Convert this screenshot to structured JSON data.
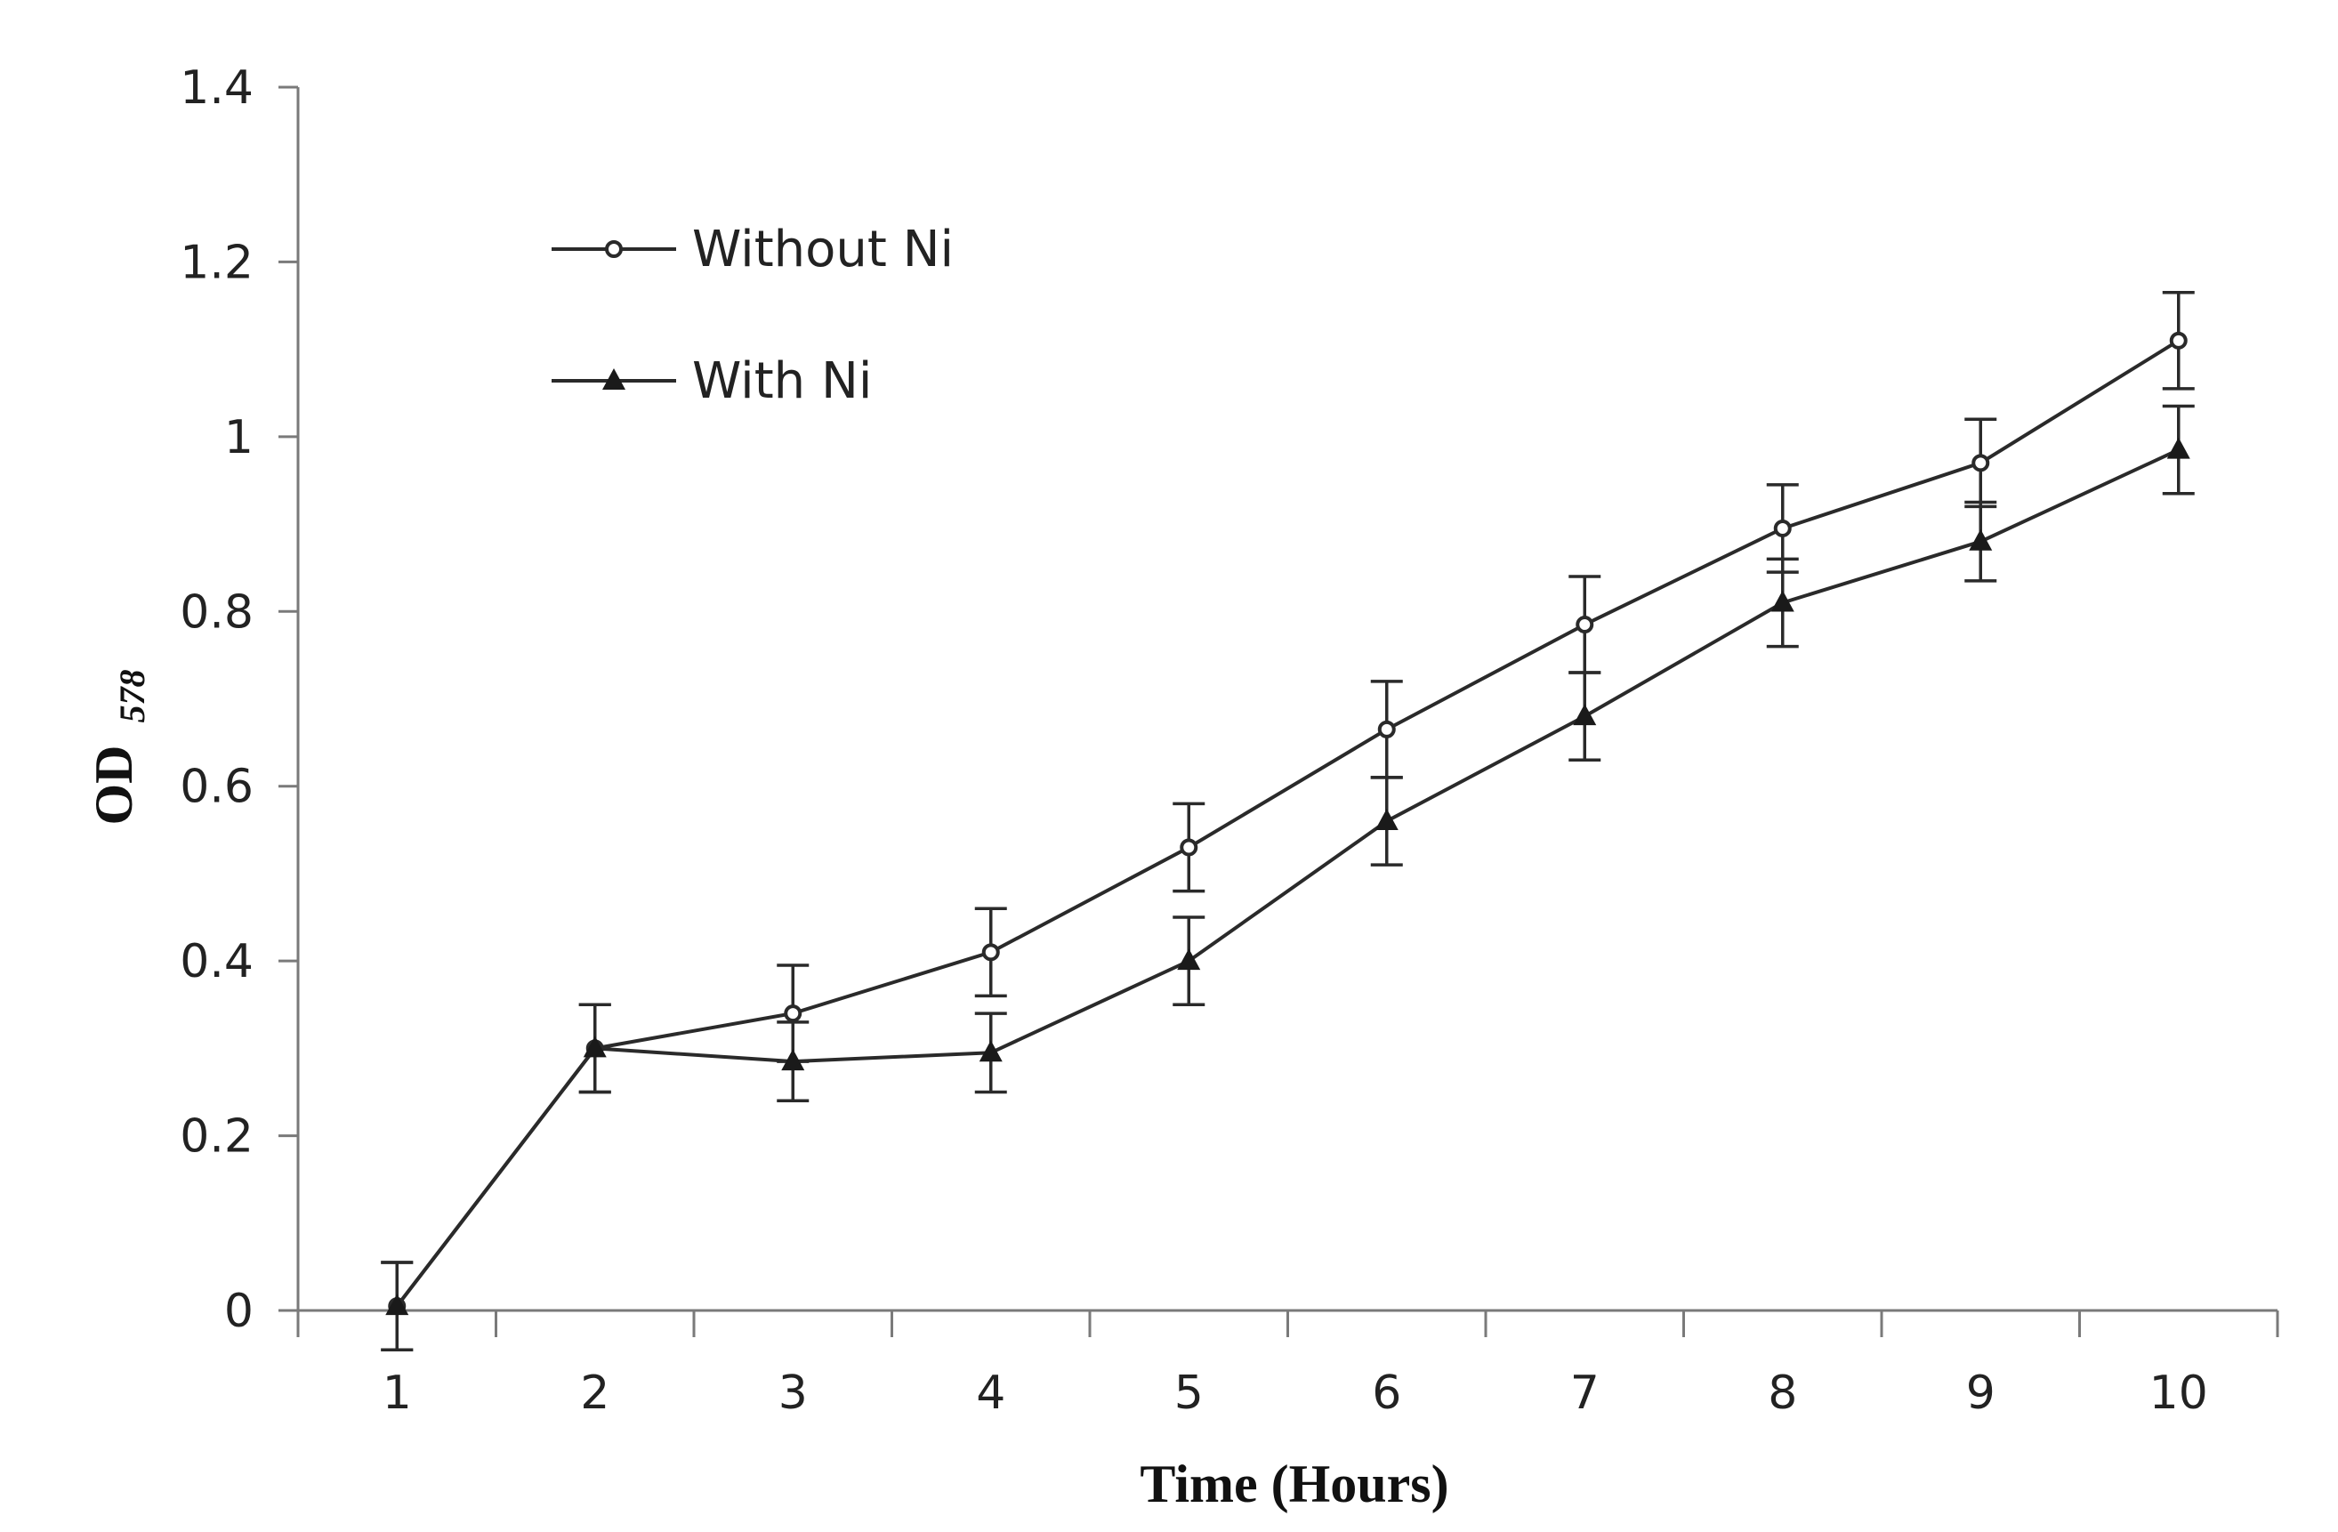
{
  "chart_data": {
    "type": "line",
    "title": "",
    "xlabel": "Time (Hours)",
    "ylabel": "OD",
    "ylabel_subscript": "578",
    "x": [
      1,
      2,
      3,
      4,
      5,
      6,
      7,
      8,
      9,
      10
    ],
    "x_tick_labels": [
      "1",
      "2",
      "3",
      "4",
      "5",
      "6",
      "7",
      "8",
      "9",
      "10"
    ],
    "ylim": [
      0,
      1.4
    ],
    "y_ticks": [
      0,
      0.2,
      0.4,
      0.6,
      0.8,
      1,
      1.2,
      1.4
    ],
    "y_tick_labels": [
      "0",
      "0.2",
      "0.4",
      "0.6",
      "0.8",
      "1",
      "1.2",
      "1.4"
    ],
    "grid": false,
    "legend_position": "top-left",
    "series": [
      {
        "name": "Without Ni",
        "marker": "circle",
        "values": [
          0.005,
          0.3,
          0.34,
          0.41,
          0.53,
          0.665,
          0.785,
          0.895,
          0.97,
          1.11
        ],
        "errors": [
          0.05,
          0.05,
          0.055,
          0.05,
          0.05,
          0.055,
          0.055,
          0.05,
          0.05,
          0.055
        ]
      },
      {
        "name": "With Ni",
        "marker": "triangle",
        "values": [
          0.005,
          0.3,
          0.285,
          0.295,
          0.4,
          0.56,
          0.68,
          0.81,
          0.88,
          0.985
        ],
        "errors": [
          0.05,
          0.05,
          0.045,
          0.045,
          0.05,
          0.05,
          0.05,
          0.05,
          0.045,
          0.05
        ]
      }
    ]
  }
}
